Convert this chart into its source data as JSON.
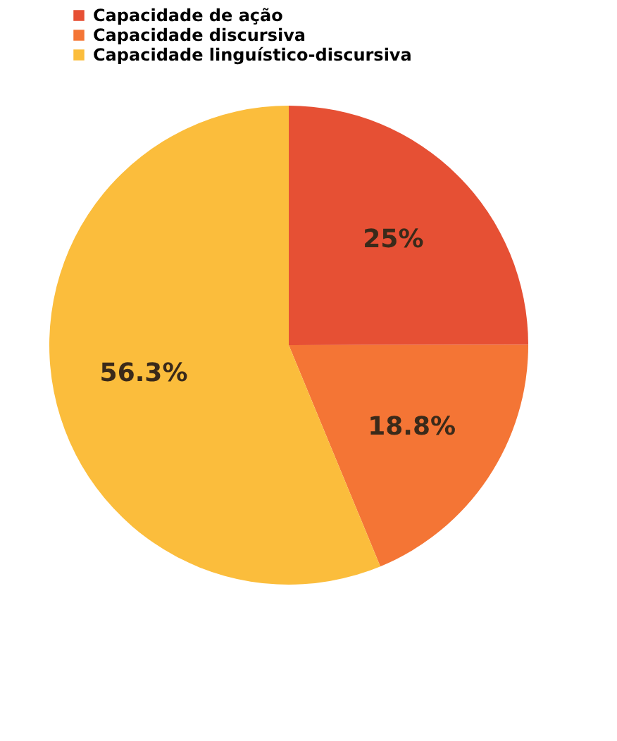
{
  "chart_data": {
    "type": "pie",
    "categories": [
      "Capacidade de ação",
      "Capacidade discursiva",
      "Capacidade linguístico-discursiva"
    ],
    "values": [
      25,
      18.8,
      56.3
    ],
    "colors": [
      "#e65034",
      "#f47535",
      "#fbbd3c"
    ],
    "value_labels": [
      "25%",
      "18.8%",
      "56.3%"
    ],
    "legend": "top left"
  }
}
